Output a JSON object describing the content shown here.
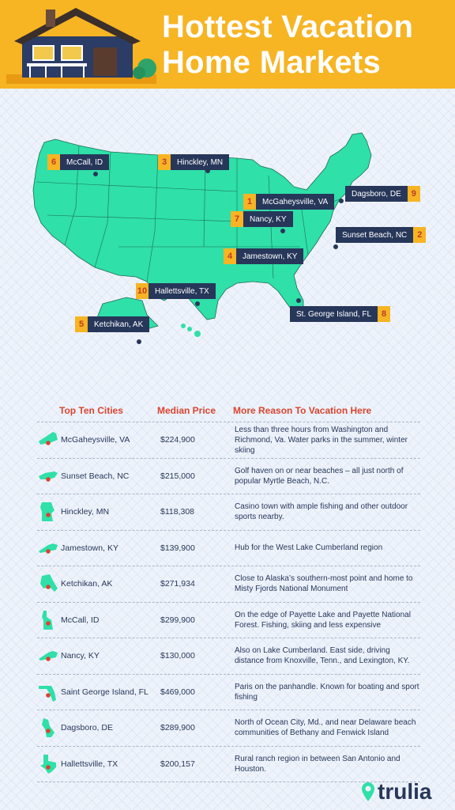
{
  "header": {
    "title_line1": "Hottest Vacation",
    "title_line2": "Home Markets"
  },
  "map_labels": [
    {
      "rank": "6",
      "city": "McCall, ID"
    },
    {
      "rank": "3",
      "city": "Hinckley, MN"
    },
    {
      "rank": "1",
      "city": "McGaheysville, VA"
    },
    {
      "rank": "9",
      "city": "Dagsboro, DE"
    },
    {
      "rank": "7",
      "city": "Nancy, KY"
    },
    {
      "rank": "2",
      "city": "Sunset Beach, NC"
    },
    {
      "rank": "4",
      "city": "Jamestown, KY"
    },
    {
      "rank": "10",
      "city": "Hallettsville, TX"
    },
    {
      "rank": "8",
      "city": "St. George Island, FL"
    },
    {
      "rank": "5",
      "city": "Ketchikan, AK"
    }
  ],
  "table": {
    "headers": [
      "Top Ten Cities",
      "Median Price",
      "More Reason To Vacation  Here"
    ],
    "rows": [
      {
        "city": "McGaheysville, VA",
        "price": "$224,900",
        "reason": "Less than three hours from Washington and Richmond, Va. Water parks in the summer, winter skiing",
        "state_icon": "virginia-icon"
      },
      {
        "city": "Sunset Beach, NC",
        "price": "$215,000",
        "reason": "Golf haven on or near beaches – all just north of popular Myrtle Beach, N.C.",
        "state_icon": "north-carolina-icon"
      },
      {
        "city": "Hinckley, MN",
        "price": "$118,308",
        "reason": "Casino town with ample fishing and other outdoor sports nearby.",
        "state_icon": "minnesota-icon"
      },
      {
        "city": "Jamestown, KY",
        "price": "$139,900",
        "reason": "Hub for the West Lake Cumberland region",
        "state_icon": "kentucky-icon"
      },
      {
        "city": "Ketchikan, AK",
        "price": "$271,934",
        "reason": "Close to Alaska’s southern-most point and home to Misty Fjords National Monument",
        "state_icon": "alaska-icon"
      },
      {
        "city": "McCall, ID",
        "price": "$299,900",
        "reason": "On the edge of Payette Lake and Payette National Forest. Fishing, skiing and less expensive",
        "state_icon": "idaho-icon"
      },
      {
        "city": "Nancy, KY",
        "price": "$130,000",
        "reason": "Also on Lake Cumberland. East side, driving distance from Knoxville, Tenn., and Lexington, KY.",
        "state_icon": "kentucky-icon"
      },
      {
        "city": "Saint George Island, FL",
        "price": "$469,000",
        "reason": "Paris on the panhandle. Known for boating and sport fishing",
        "state_icon": "florida-icon"
      },
      {
        "city": "Dagsboro, DE",
        "price": "$289,900",
        "reason": "North of Ocean City, Md., and near Delaware beach communities of Bethany and Fenwick Island",
        "state_icon": "delaware-icon"
      },
      {
        "city": "Hallettsville, TX",
        "price": "$200,157",
        "reason": "Rural ranch region in between San Antonio and Houston.",
        "state_icon": "texas-icon"
      }
    ]
  },
  "brand": {
    "logo_text": "trulia"
  },
  "colors": {
    "accent": "#f7b423",
    "map": "#2fe0a8",
    "navy": "#27375a",
    "red": "#d9442e"
  }
}
